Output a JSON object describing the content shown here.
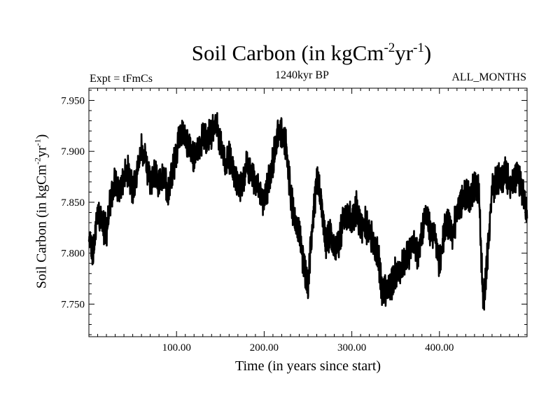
{
  "chart_data": {
    "type": "line",
    "title_main": "Soil Carbon (in kgCm",
    "title_sup1": "-2",
    "title_mid": "yr",
    "title_sup2": "-1",
    "title_end": ")",
    "subtitle_left": "Expt = tFmCs",
    "subtitle_center": "1240kyr BP",
    "subtitle_right": "ALL_MONTHS",
    "xlabel": "Time (in years since start)",
    "ylabel_main": "Soil Carbon (in kgCm",
    "ylabel_sup1": "-2",
    "ylabel_mid": "yr",
    "ylabel_sup2": "-1",
    "ylabel_end": ")",
    "xlim": [
      0,
      500
    ],
    "ylim": [
      7.718,
      7.962
    ],
    "xticks": [
      100,
      200,
      300,
      400
    ],
    "xtick_labels": [
      "100.00",
      "200.00",
      "300.00",
      "400.00"
    ],
    "yticks": [
      7.75,
      7.8,
      7.85,
      7.9,
      7.95
    ],
    "ytick_labels": [
      "7.750",
      "7.800",
      "7.850",
      "7.900",
      "7.950"
    ],
    "x_minor_step": 10,
    "y_minor_step": 0.01,
    "series": [
      {
        "name": "Soil Carbon",
        "color": "#000000",
        "x": [
          0,
          5,
          10,
          15,
          20,
          25,
          30,
          35,
          40,
          45,
          50,
          55,
          60,
          65,
          70,
          75,
          80,
          85,
          90,
          95,
          100,
          105,
          110,
          115,
          120,
          125,
          130,
          135,
          140,
          145,
          150,
          155,
          160,
          165,
          170,
          175,
          180,
          185,
          190,
          195,
          200,
          205,
          210,
          215,
          220,
          225,
          230,
          235,
          240,
          245,
          250,
          255,
          260,
          265,
          270,
          275,
          280,
          285,
          290,
          295,
          300,
          305,
          310,
          315,
          320,
          325,
          330,
          335,
          340,
          345,
          350,
          355,
          360,
          365,
          370,
          375,
          380,
          385,
          390,
          395,
          400,
          405,
          410,
          415,
          420,
          425,
          430,
          435,
          440,
          445,
          450,
          455,
          460,
          465,
          470,
          475,
          480,
          485,
          490,
          495,
          500
        ],
        "y": [
          7.81,
          7.8,
          7.84,
          7.83,
          7.82,
          7.855,
          7.87,
          7.86,
          7.875,
          7.88,
          7.86,
          7.88,
          7.9,
          7.89,
          7.87,
          7.88,
          7.87,
          7.875,
          7.86,
          7.88,
          7.9,
          7.92,
          7.91,
          7.905,
          7.89,
          7.9,
          7.915,
          7.91,
          7.92,
          7.93,
          7.91,
          7.89,
          7.895,
          7.88,
          7.865,
          7.87,
          7.885,
          7.88,
          7.87,
          7.86,
          7.85,
          7.87,
          7.89,
          7.915,
          7.92,
          7.905,
          7.86,
          7.83,
          7.82,
          7.79,
          7.77,
          7.83,
          7.87,
          7.855,
          7.81,
          7.82,
          7.8,
          7.81,
          7.83,
          7.84,
          7.83,
          7.845,
          7.825,
          7.83,
          7.82,
          7.81,
          7.8,
          7.76,
          7.765,
          7.77,
          7.78,
          7.785,
          7.79,
          7.8,
          7.81,
          7.8,
          7.82,
          7.84,
          7.82,
          7.815,
          7.79,
          7.82,
          7.83,
          7.82,
          7.84,
          7.85,
          7.86,
          7.855,
          7.865,
          7.86,
          7.75,
          7.8,
          7.86,
          7.875,
          7.87,
          7.88,
          7.865,
          7.87,
          7.875,
          7.86,
          7.84
        ],
        "noise_amplitude": 0.011
      }
    ]
  }
}
